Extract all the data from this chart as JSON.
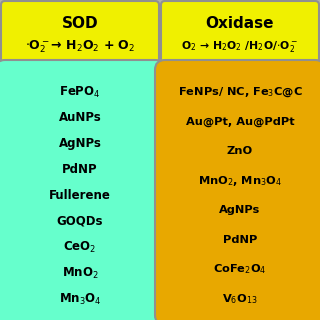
{
  "background_color": "#b0b0b0",
  "left_header_color": "#f0f000",
  "right_header_color": "#f0f000",
  "left_box_color": "#66ffcc",
  "right_box_color": "#e8a800",
  "left_title": "SOD",
  "right_title": "Oxidase",
  "left_reaction_1": "$\\cdot$O$_2^-$→ H$_2$O$_2$ + O$_2$",
  "right_reaction_1": "O$_2$ → H$_2$O$_2$ /H$_2$O/$\\cdot$O$_2^-$",
  "left_items": [
    "FePO$_4$",
    "AuNPs",
    "AgNPs",
    "PdNP",
    "Fullerene",
    "GOQDs",
    "CeO$_2$",
    "MnO$_2$",
    "Mn$_3$O$_4$"
  ],
  "right_items": [
    "FeNPs/ NC, Fe$_3$C@C",
    "Au@Pt, Au@PdPt",
    "ZnO",
    "MnO$_2$, Mn$_3$O$_4$",
    "AgNPs",
    "PdNP",
    "CoFe$_2$O$_4$",
    "V$_6$O$_{13}$"
  ]
}
